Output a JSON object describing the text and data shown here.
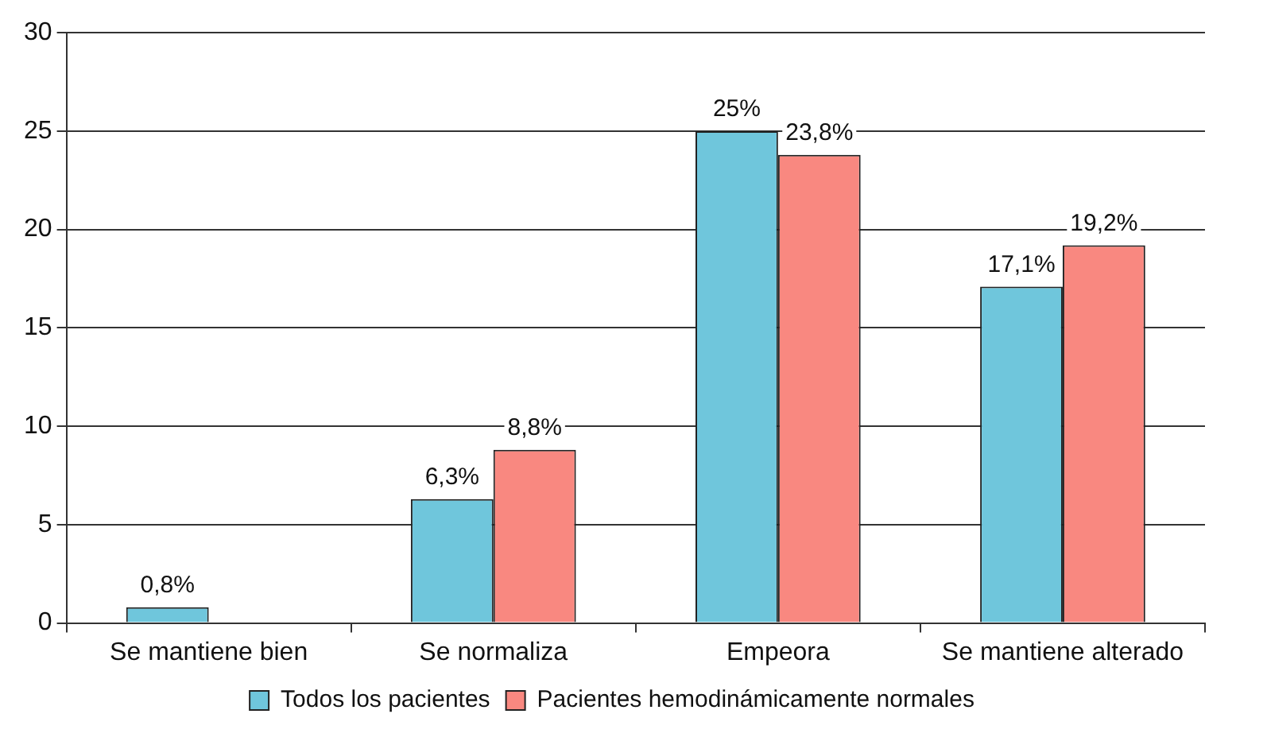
{
  "chart_data": {
    "type": "bar",
    "categories": [
      "Se mantiene bien",
      "Se normaliza",
      "Empeora",
      "Se mantiene alterado"
    ],
    "series": [
      {
        "name": "Todos los pacientes",
        "color": "#6fc6dc",
        "values": [
          0.8,
          6.3,
          25,
          17.1
        ],
        "value_labels": [
          "0,8%",
          "6,3%",
          "25%",
          "17,1%"
        ]
      },
      {
        "name": "Pacientes hemodinámicamente normales",
        "color": "#f98880",
        "values": [
          null,
          8.8,
          23.8,
          19.2
        ],
        "value_labels": [
          null,
          "8,8%",
          "23,8%",
          "19,2%"
        ]
      }
    ],
    "ylim": [
      0,
      30
    ],
    "yticks": [
      0,
      5,
      10,
      15,
      20,
      25,
      30
    ],
    "grid": "y",
    "legend": "bottom"
  }
}
